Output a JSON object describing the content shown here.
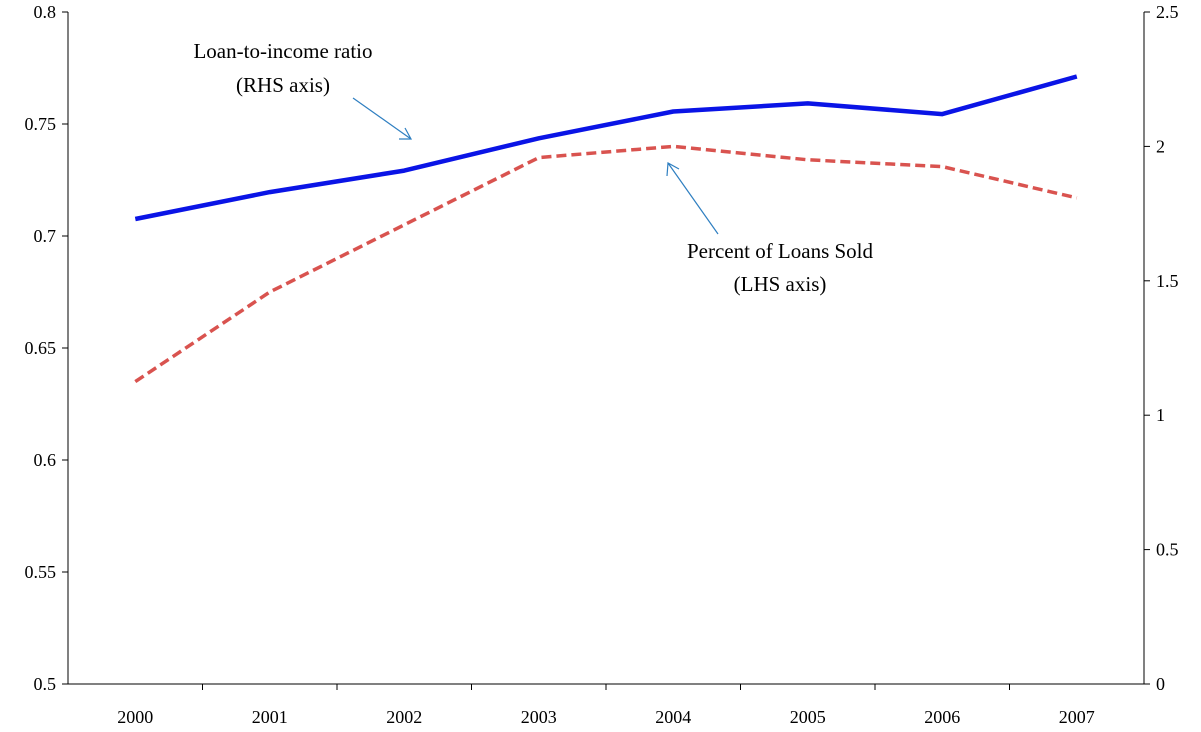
{
  "chart_data": {
    "type": "line",
    "x": [
      "2000",
      "2001",
      "2002",
      "2003",
      "2004",
      "2005",
      "2006",
      "2007"
    ],
    "left_axis": {
      "range": [
        0.5,
        0.8
      ],
      "ticks": [
        "0.5",
        "0.55",
        "0.6",
        "0.65",
        "0.7",
        "0.75",
        "0.8"
      ]
    },
    "right_axis": {
      "range": [
        0,
        2.5
      ],
      "ticks": [
        "0",
        "0.5",
        "1",
        "1.5",
        "2",
        "2.5"
      ]
    },
    "series": [
      {
        "name": "Loan-to-income ratio",
        "axis": "right",
        "style": "solid",
        "color": "#0a14e6",
        "values": [
          1.73,
          1.83,
          1.91,
          2.03,
          2.13,
          2.16,
          2.12,
          2.26
        ]
      },
      {
        "name": "Percent of Loans Sold",
        "axis": "left",
        "style": "dashed",
        "color": "#d9534f",
        "values": [
          0.635,
          0.675,
          0.705,
          0.735,
          0.74,
          0.734,
          0.731,
          0.717
        ]
      }
    ],
    "annotations": [
      {
        "lines": [
          "Loan-to-income ratio",
          "(RHS axis)"
        ]
      },
      {
        "lines": [
          "Percent of Loans Sold",
          "(LHS axis)"
        ]
      }
    ],
    "grid": false,
    "legend": "none"
  }
}
